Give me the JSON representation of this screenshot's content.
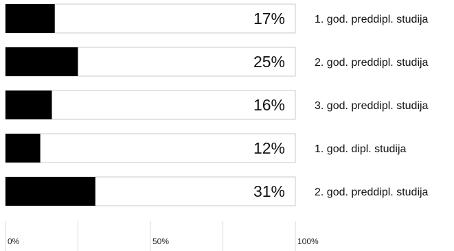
{
  "chart_data": {
    "type": "bar",
    "orientation": "horizontal",
    "categories": [
      "1. god. preddipl. studija",
      "2. god. preddipl. studija",
      "3. god. preddipl. studija",
      "1. god. dipl. studija",
      "2. god. preddipl. studija"
    ],
    "values": [
      17,
      25,
      16,
      12,
      31
    ],
    "value_labels": [
      "17%",
      "25%",
      "16%",
      "12%",
      "31%"
    ],
    "xlim": [
      0,
      100
    ],
    "x_ticks": [
      0,
      50,
      100
    ],
    "x_tick_labels": [
      "0%",
      "50%",
      "100%"
    ],
    "bar_color": "#000000",
    "track_border_color": "#c8c8c8",
    "legend": "none",
    "grid": true
  }
}
